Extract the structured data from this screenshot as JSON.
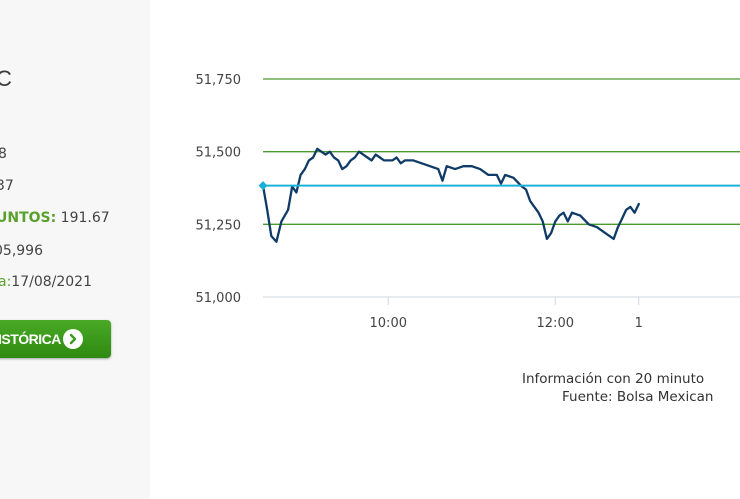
{
  "index": {
    "name_partial": "C"
  },
  "stats": [
    {
      "label": "",
      "value": "8"
    },
    {
      "label": "",
      "value": "37"
    },
    {
      "label": "UNTOS:",
      "value": " 191.67"
    },
    {
      "label": "",
      "value": "05,996"
    },
    {
      "label": "a:",
      "value": "17/08/2021"
    }
  ],
  "historic_button": {
    "label": "ISTÓRICA"
  },
  "colors": {
    "line": "#0f3b66",
    "reference": "#1ab0d8",
    "grid": "#4a9a2c",
    "accent": "#5aa02c",
    "button": "#3a9a1c"
  },
  "chart_data": {
    "type": "line",
    "title": "",
    "xlabel": "",
    "ylabel": "",
    "ylim": [
      51000,
      51750
    ],
    "yticks": [
      51000,
      51250,
      51500,
      51750
    ],
    "ytick_labels": [
      "51,000",
      "51,250",
      "51,500",
      "51,750"
    ],
    "xlim_hours": [
      8.5,
      13.0
    ],
    "xticks": [
      10,
      12,
      13
    ],
    "xtick_labels": [
      "10:00",
      "12:00",
      "1"
    ],
    "reference_value": 51383,
    "grid": "horizontal",
    "series": [
      {
        "x": [
          8.5,
          8.55,
          8.6,
          8.66,
          8.72,
          8.8,
          8.85,
          8.9,
          8.95,
          9.0,
          9.05,
          9.1,
          9.15,
          9.2,
          9.25,
          9.3,
          9.35,
          9.4,
          9.45,
          9.5,
          9.55,
          9.6,
          9.65,
          9.7,
          9.75,
          9.8,
          9.85,
          9.9,
          9.95,
          10.0,
          10.05,
          10.1,
          10.15,
          10.2,
          10.3,
          10.4,
          10.5,
          10.6,
          10.65,
          10.7,
          10.8,
          10.9,
          11.0,
          11.1,
          11.2,
          11.3,
          11.35,
          11.4,
          11.5,
          11.6,
          11.65,
          11.7,
          11.75,
          11.8,
          11.85,
          11.9,
          11.95,
          12.0,
          12.05,
          12.1,
          12.15,
          12.2,
          12.3,
          12.4,
          12.5,
          12.6,
          12.7,
          12.75,
          12.8,
          12.85,
          12.9,
          12.95,
          13.0
        ],
        "y": [
          51383,
          51300,
          51210,
          51190,
          51260,
          51300,
          51380,
          51360,
          51420,
          51440,
          51470,
          51480,
          51510,
          51500,
          51490,
          51500,
          51480,
          51470,
          51440,
          51450,
          51470,
          51480,
          51500,
          51490,
          51480,
          51470,
          51490,
          51480,
          51470,
          51470,
          51470,
          51480,
          51460,
          51470,
          51470,
          51460,
          51450,
          51440,
          51400,
          51450,
          51440,
          51450,
          51450,
          51440,
          51420,
          51420,
          51390,
          51420,
          51410,
          51380,
          51370,
          51330,
          51310,
          51290,
          51260,
          51200,
          51220,
          51260,
          51280,
          51290,
          51260,
          51290,
          51280,
          51250,
          51240,
          51220,
          51200,
          51240,
          51270,
          51300,
          51310,
          51290,
          51320
        ]
      }
    ]
  },
  "footer": {
    "info": "Información con 20 minuto",
    "source": "Fuente: Bolsa Mexican"
  }
}
